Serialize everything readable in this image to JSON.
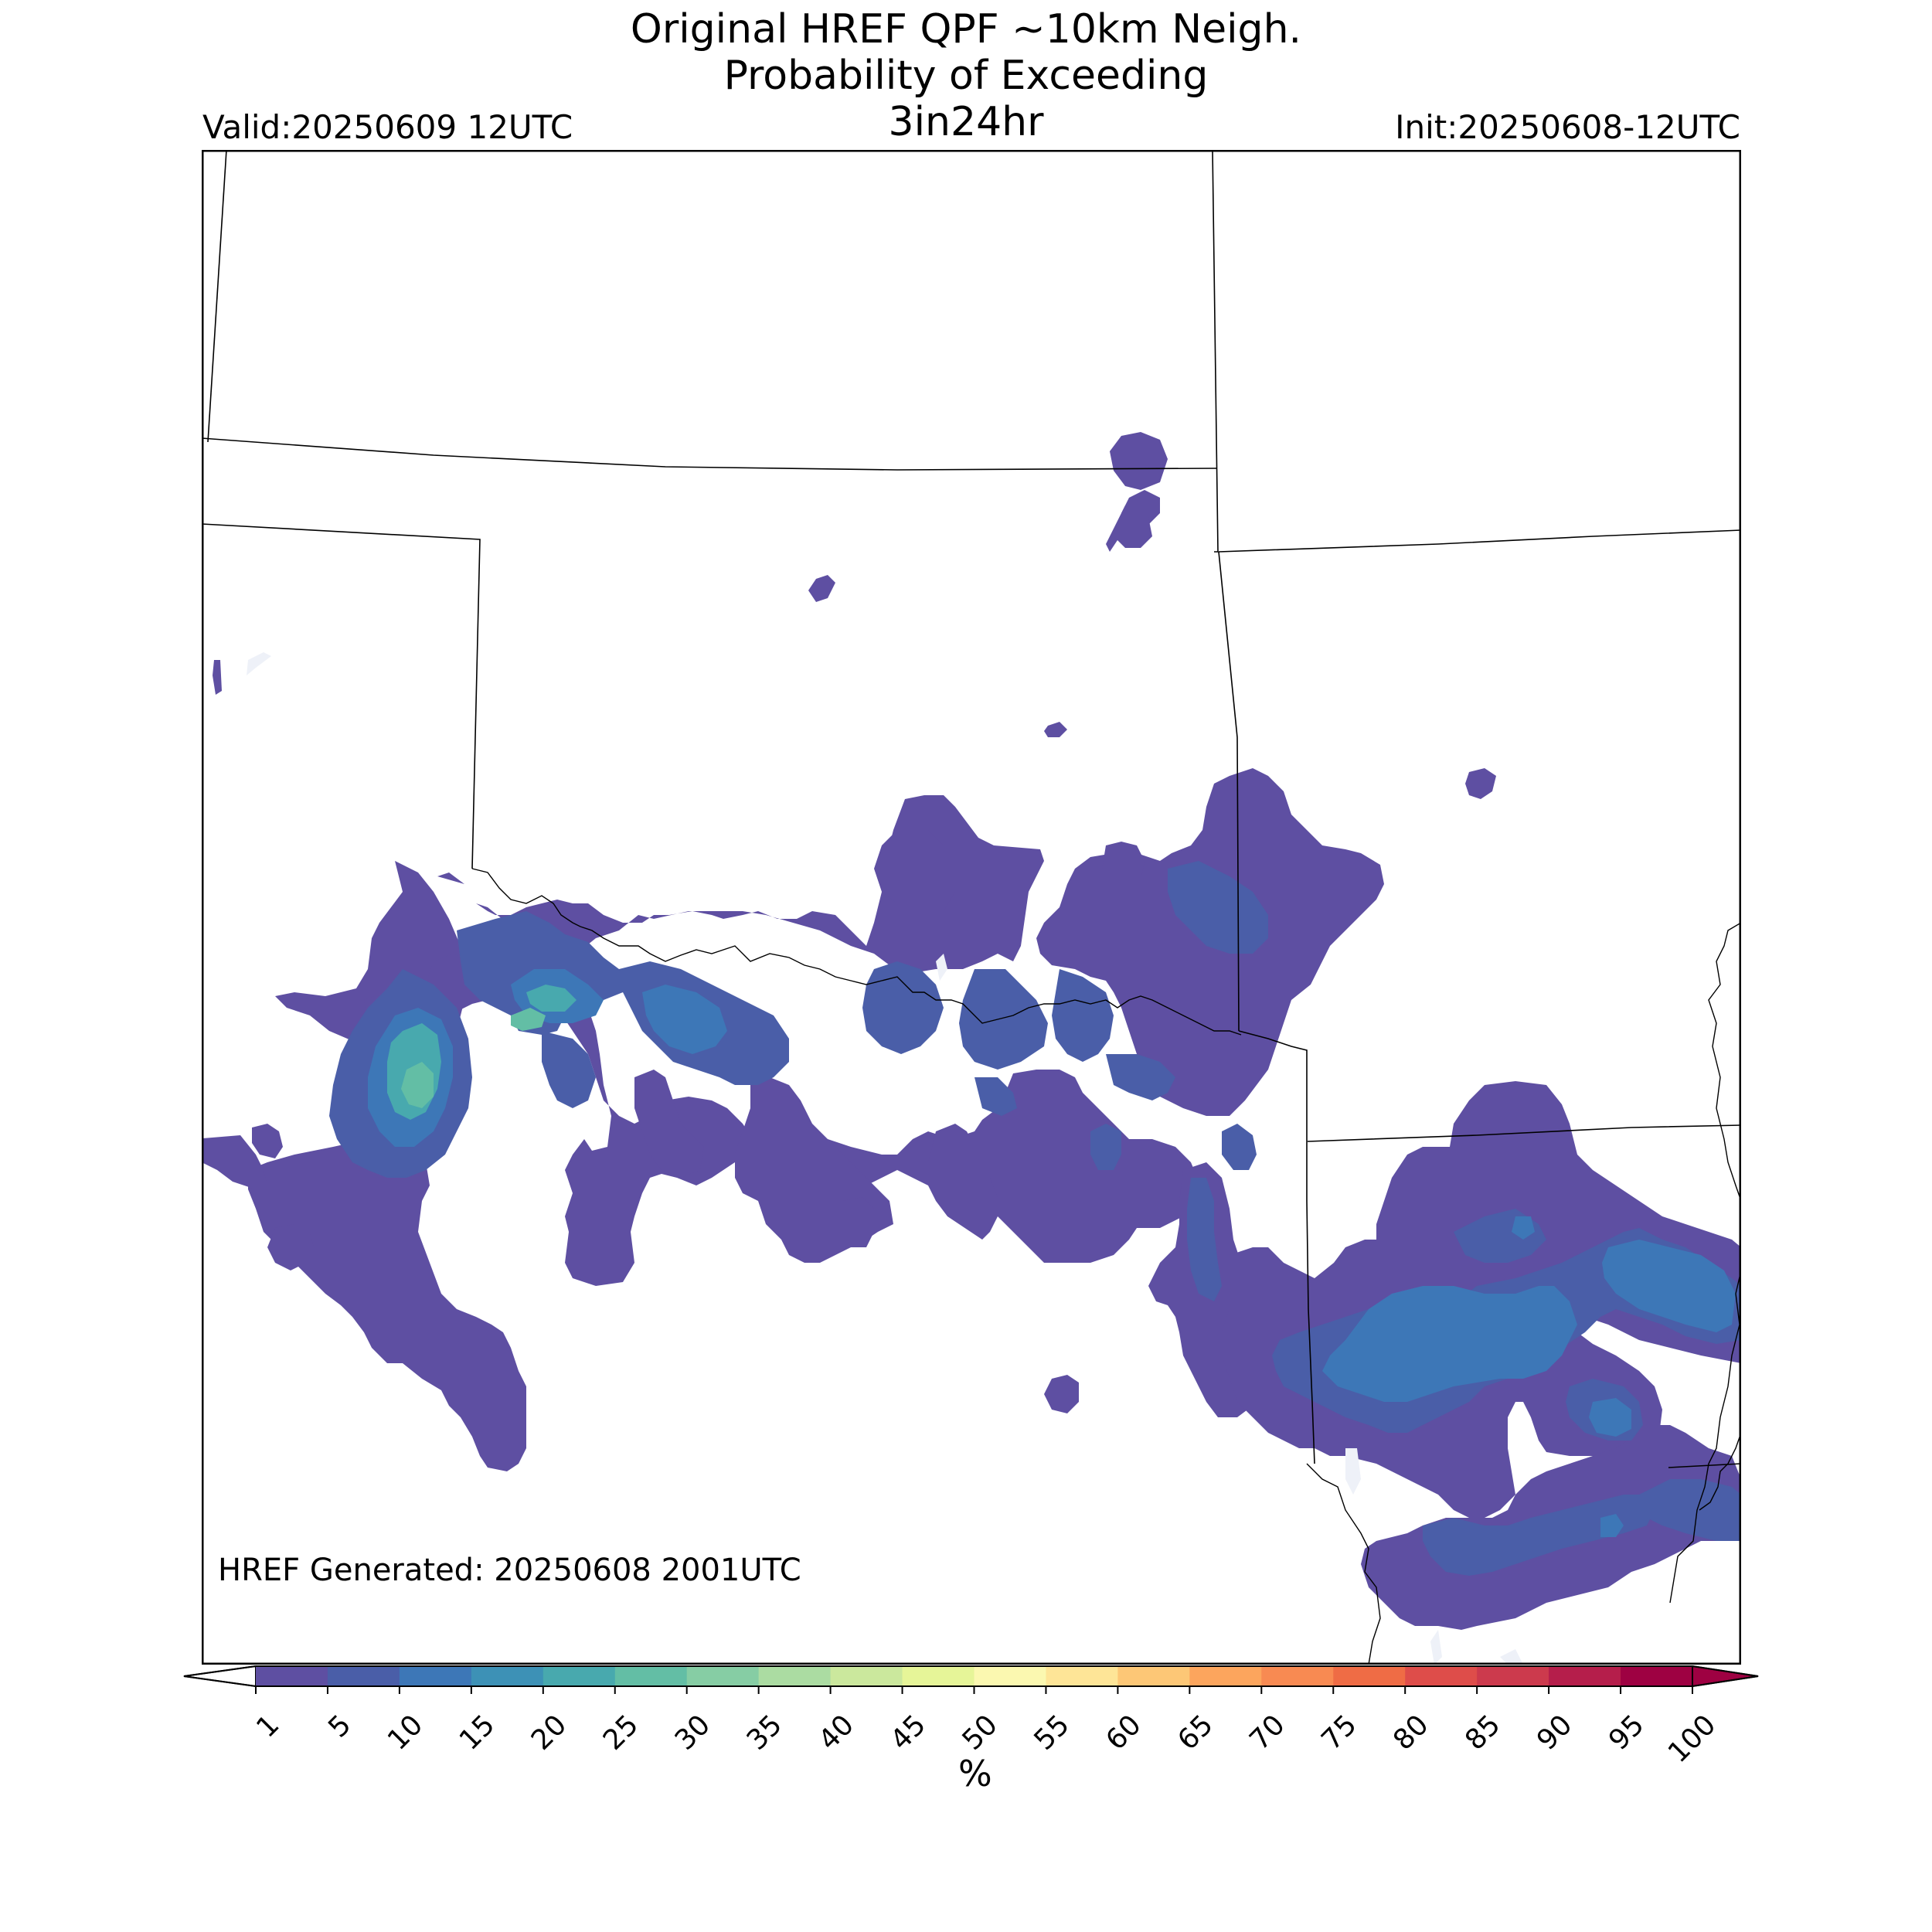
{
  "title": {
    "line1": "Original HREF QPF ~10km Neigh.",
    "line2": "Probability of Exceeding",
    "line3": "3in24hr"
  },
  "valid_label": "Valid:20250609 12UTC",
  "init_label": "Init:20250608-12UTC",
  "generated_label": "HREF Generated: 20250608 2001UTC",
  "colorbar": {
    "unit": "%",
    "ticks": [
      "1",
      "5",
      "10",
      "15",
      "20",
      "25",
      "30",
      "35",
      "40",
      "45",
      "50",
      "55",
      "60",
      "65",
      "70",
      "75",
      "80",
      "85",
      "90",
      "95",
      "100"
    ],
    "colors": [
      "#5e4fa2",
      "#4a5ea8",
      "#3d77b7",
      "#3d91b6",
      "#48a9ae",
      "#63bea5",
      "#86cda4",
      "#abdca2",
      "#cbe89d",
      "#e6f598",
      "#fbf8b0",
      "#fee597",
      "#fdc776",
      "#fca55d",
      "#f88a52",
      "#ef6c45",
      "#de4d4a",
      "#cc3a4d",
      "#b51e4b",
      "#9e0142"
    ],
    "extend": "both"
  },
  "map": {
    "description_colors": {
      "boundary": "#000000",
      "water": "#eef1f8"
    }
  }
}
